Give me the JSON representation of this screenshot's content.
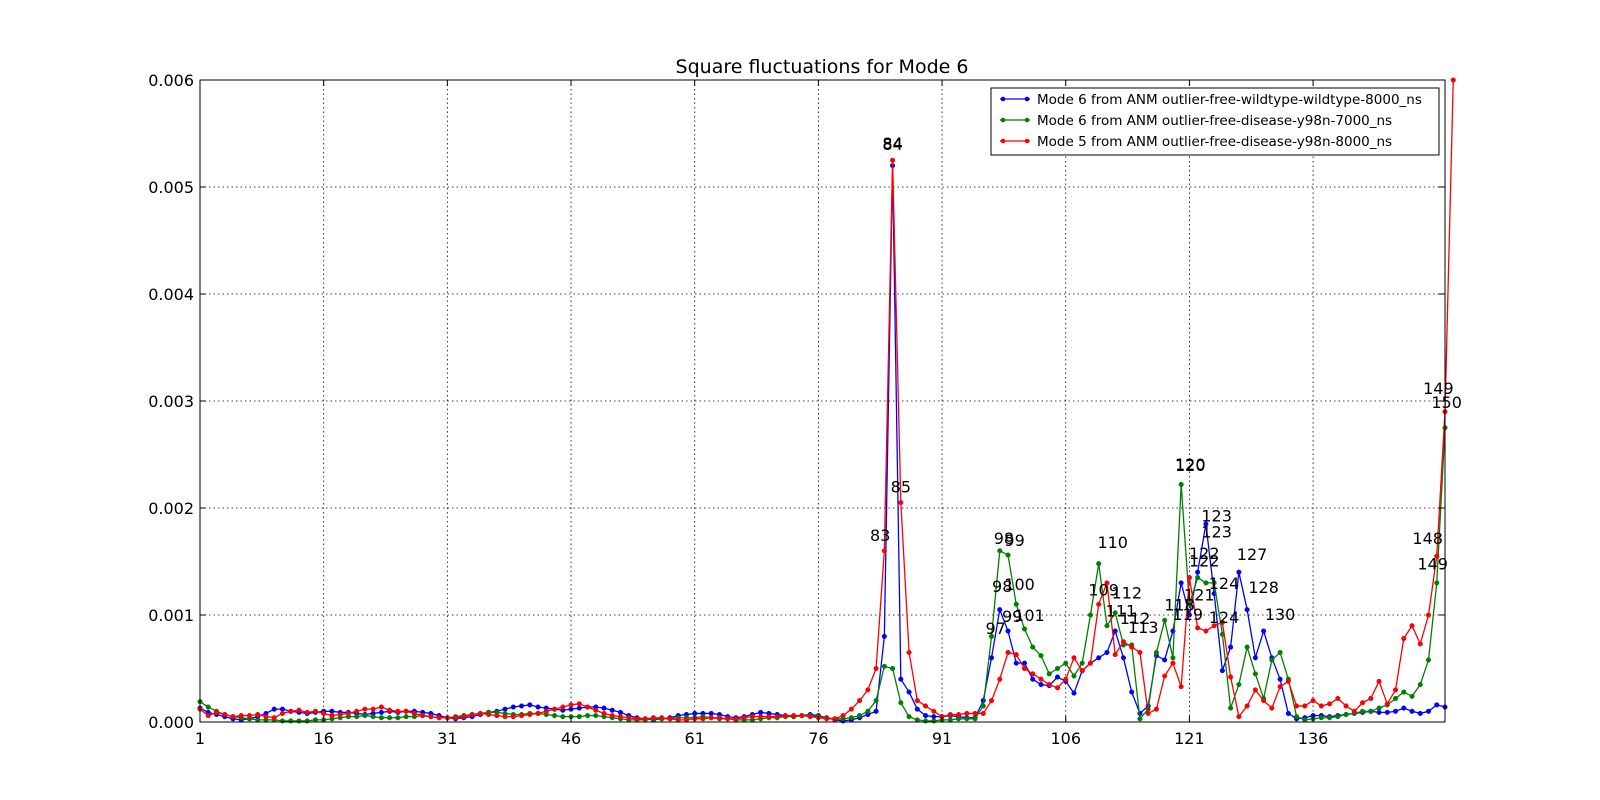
{
  "chart_data": {
    "type": "line",
    "title": "Square fluctuations for Mode 6",
    "xlabel": "",
    "ylabel": "",
    "xlim": [
      1,
      152
    ],
    "ylim": [
      0.0,
      0.006
    ],
    "x_ticks": [
      "1",
      "16",
      "31",
      "46",
      "61",
      "76",
      "91",
      "106",
      "121",
      "136"
    ],
    "y_ticks": [
      "0.000",
      "0.001",
      "0.002",
      "0.003",
      "0.004",
      "0.005",
      "0.006"
    ],
    "grid": true,
    "legend_position": "top-right",
    "series": [
      {
        "name": "Mode 6 from ANM outlier-free-wildtype-wildtype-8000_ns",
        "color": "#0000ff",
        "values": [
          0.00013,
          9e-05,
          7e-05,
          5e-05,
          3e-05,
          2e-05,
          3e-05,
          5e-05,
          8e-05,
          0.00012,
          0.00012,
          0.0001,
          9e-05,
          8e-05,
          9e-05,
          0.0001,
          0.0001,
          9e-05,
          9e-05,
          8e-05,
          7e-05,
          8e-05,
          9e-05,
          0.0001,
          9e-05,
          0.0001,
          0.0001,
          9e-05,
          8e-05,
          6e-05,
          4e-05,
          3e-05,
          4e-05,
          5e-05,
          7e-05,
          9e-05,
          0.0001,
          0.00012,
          0.00014,
          0.00015,
          0.00016,
          0.00014,
          0.00013,
          0.00012,
          0.00011,
          0.00012,
          0.00013,
          0.00014,
          0.00014,
          0.00013,
          0.00011,
          9e-05,
          6e-05,
          4e-05,
          3e-05,
          2e-05,
          3e-05,
          4e-05,
          6e-05,
          7e-05,
          8e-05,
          8e-05,
          8e-05,
          7e-05,
          5e-05,
          4e-05,
          5e-05,
          7e-05,
          9e-05,
          8e-05,
          7e-05,
          6e-05,
          5e-05,
          6e-05,
          7e-05,
          6e-05,
          4e-05,
          2e-05,
          1e-05,
          2e-05,
          4e-05,
          7e-05,
          0.0001,
          0.0008,
          0.0052,
          0.0004,
          0.00028,
          0.00012,
          6e-05,
          5e-05,
          5e-05,
          6e-05,
          5e-05,
          4e-05,
          4e-05,
          0.0002,
          0.0006,
          0.00105,
          0.00085,
          0.00055,
          0.00055,
          0.0004,
          0.00035,
          0.00034,
          0.00042,
          0.00038,
          0.00027,
          0.00048,
          0.00055,
          0.0006,
          0.00065,
          0.00085,
          0.0006,
          0.00028,
          8e-05,
          0.00015,
          0.00062,
          0.00058,
          0.00085,
          0.0013,
          0.001,
          0.0014,
          0.00185,
          0.0012,
          0.00048,
          0.0007,
          0.0014,
          0.00105,
          0.0006,
          0.00085,
          0.0006,
          0.0004,
          8e-05,
          3e-05,
          4e-05,
          6e-05,
          6e-05,
          5e-05,
          6e-05,
          7e-05,
          8e-05,
          9e-05,
          0.0001,
          9e-05,
          9e-05,
          0.0001,
          0.00013,
          0.0001,
          8e-05,
          0.0001,
          0.00016,
          0.00014
        ]
      },
      {
        "name": "Mode 6 from ANM outlier-free-disease-y98n-7000_ns",
        "color": "#008000",
        "values": [
          0.00019,
          0.00014,
          0.0001,
          7e-05,
          5e-05,
          4e-05,
          3e-05,
          2e-05,
          2e-05,
          2e-05,
          1e-05,
          1e-05,
          1e-05,
          1e-05,
          2e-05,
          2e-05,
          3e-05,
          4e-05,
          5e-05,
          5e-05,
          6e-05,
          5e-05,
          4e-05,
          4e-05,
          4e-05,
          5e-05,
          5e-05,
          6e-05,
          5e-05,
          4e-05,
          4e-05,
          5e-05,
          6e-05,
          7e-05,
          8e-05,
          9e-05,
          9e-05,
          8e-05,
          7e-05,
          7e-05,
          8e-05,
          8e-05,
          7e-05,
          6e-05,
          5e-05,
          5e-05,
          5e-05,
          6e-05,
          6e-05,
          5e-05,
          4e-05,
          3e-05,
          2e-05,
          2e-05,
          2e-05,
          3e-05,
          3e-05,
          3e-05,
          4e-05,
          4e-05,
          4e-05,
          5e-05,
          4e-05,
          3e-05,
          3e-05,
          2e-05,
          2e-05,
          2e-05,
          3e-05,
          4e-05,
          4e-05,
          5e-05,
          5e-05,
          6e-05,
          6e-05,
          5e-05,
          4e-05,
          3e-05,
          3e-05,
          4e-05,
          6e-05,
          0.0001,
          0.0002,
          0.00052,
          0.0005,
          0.00018,
          5e-05,
          2e-05,
          1e-05,
          1e-05,
          2e-05,
          2e-05,
          3e-05,
          3e-05,
          3e-05,
          0.00015,
          0.0008,
          0.0016,
          0.00156,
          0.0011,
          0.00087,
          0.0007,
          0.00062,
          0.00045,
          0.0005,
          0.00055,
          0.00043,
          0.00055,
          0.001,
          0.00148,
          0.0009,
          0.00102,
          0.00072,
          0.00072,
          3e-05,
          0.00012,
          0.00065,
          0.00095,
          0.0006,
          0.00222,
          0.0011,
          0.00135,
          0.0013,
          0.0013,
          0.00082,
          0.00013,
          0.00035,
          0.0007,
          0.00045,
          0.00022,
          0.00058,
          0.00065,
          0.0004,
          5e-05,
          2e-05,
          3e-05,
          4e-05,
          4e-05,
          5e-05,
          7e-05,
          8e-05,
          0.0001,
          0.0001,
          0.00013,
          0.00016,
          0.00022,
          0.00028,
          0.00024,
          0.00035,
          0.00058,
          0.0013,
          0.00275
        ]
      },
      {
        "name": "Mode 5 from ANM outlier-free-disease-y98n-8000_ns",
        "color": "#ff0000",
        "values": [
          0.00012,
          6e-05,
          9e-05,
          7e-05,
          5e-05,
          6e-05,
          6e-05,
          7e-05,
          5e-05,
          4e-05,
          8e-05,
          0.0001,
          0.00011,
          9e-05,
          0.0001,
          8e-05,
          6e-05,
          7e-05,
          8e-05,
          0.0001,
          0.00012,
          0.00012,
          0.00014,
          0.00011,
          0.0001,
          0.0001,
          8e-05,
          6e-05,
          5e-05,
          4e-05,
          4e-05,
          4e-05,
          5e-05,
          7e-05,
          8e-05,
          7e-05,
          6e-05,
          5e-05,
          5e-05,
          6e-05,
          7e-05,
          8e-05,
          0.0001,
          0.00012,
          0.00014,
          0.00016,
          0.00017,
          0.00014,
          0.00011,
          8e-05,
          6e-05,
          5e-05,
          4e-05,
          3e-05,
          3e-05,
          4e-05,
          4e-05,
          3e-05,
          2e-05,
          2e-05,
          3e-05,
          3e-05,
          4e-05,
          4e-05,
          3e-05,
          3e-05,
          4e-05,
          5e-05,
          5e-05,
          5e-05,
          5e-05,
          6e-05,
          6e-05,
          6e-05,
          5e-05,
          4e-05,
          3e-05,
          3e-05,
          6e-05,
          0.00012,
          0.0002,
          0.0003,
          0.0005,
          0.0016,
          0.00525,
          0.00205,
          0.00065,
          0.0002,
          0.00015,
          0.0001,
          5e-05,
          7e-05,
          7e-05,
          8e-05,
          8e-05,
          8e-05,
          0.0002,
          0.0004,
          0.00065,
          0.00063,
          0.0005,
          0.00045,
          0.0004,
          0.00035,
          0.00032,
          0.0004,
          0.0006,
          0.00048,
          0.00055,
          0.0011,
          0.0013,
          0.00063,
          0.00075,
          0.0007,
          0.00065,
          8e-05,
          0.00012,
          0.00043,
          0.00055,
          0.00033,
          0.00135,
          0.00088,
          0.00085,
          0.0009,
          0.00093,
          0.00042,
          5e-05,
          0.00015,
          0.0003,
          0.0002,
          0.00013,
          0.00033,
          0.00038,
          0.00015,
          0.00015,
          0.0002,
          0.00015,
          0.00017,
          0.00022,
          0.00015,
          0.0001,
          0.00018,
          0.00022,
          0.00038,
          0.00017,
          0.0003,
          0.00078,
          0.0009,
          0.00073,
          0.001,
          0.00155,
          0.0029,
          0.006
        ]
      }
    ],
    "annotations": [
      {
        "text": "84",
        "x": 85,
        "y": 0.0054
      },
      {
        "text": "84",
        "x": 85,
        "y": 0.00541
      },
      {
        "text": "85",
        "x": 86,
        "y": 0.0022
      },
      {
        "text": "83",
        "x": 83.5,
        "y": 0.00175
      },
      {
        "text": "98",
        "x": 98.5,
        "y": 0.00172
      },
      {
        "text": "99",
        "x": 99.8,
        "y": 0.0017
      },
      {
        "text": "98",
        "x": 98.3,
        "y": 0.00127
      },
      {
        "text": "100",
        "x": 100.4,
        "y": 0.00129
      },
      {
        "text": "97",
        "x": 97.5,
        "y": 0.00088
      },
      {
        "text": "99",
        "x": 99.5,
        "y": 0.00099
      },
      {
        "text": "101",
        "x": 101.6,
        "y": 0.001
      },
      {
        "text": "110",
        "x": 111.7,
        "y": 0.00168
      },
      {
        "text": "109",
        "x": 110.6,
        "y": 0.00124
      },
      {
        "text": "112",
        "x": 113.4,
        "y": 0.00121
      },
      {
        "text": "111",
        "x": 112.7,
        "y": 0.00104
      },
      {
        "text": "112",
        "x": 114.4,
        "y": 0.00097
      },
      {
        "text": "113",
        "x": 115.4,
        "y": 0.00089
      },
      {
        "text": "120",
        "x": 121.1,
        "y": 0.0024
      },
      {
        "text": "120",
        "x": 121.1,
        "y": 0.00241
      },
      {
        "text": "123",
        "x": 124.3,
        "y": 0.00193
      },
      {
        "text": "123",
        "x": 124.3,
        "y": 0.00178
      },
      {
        "text": "122",
        "x": 122.8,
        "y": 0.00158
      },
      {
        "text": "122",
        "x": 122.8,
        "y": 0.00151
      },
      {
        "text": "124",
        "x": 125.2,
        "y": 0.0013
      },
      {
        "text": "121",
        "x": 122.2,
        "y": 0.00119
      },
      {
        "text": "118",
        "x": 119.8,
        "y": 0.0011
      },
      {
        "text": "119",
        "x": 120.8,
        "y": 0.00101
      },
      {
        "text": "124",
        "x": 125.2,
        "y": 0.00098
      },
      {
        "text": "127",
        "x": 128.6,
        "y": 0.00157
      },
      {
        "text": "128",
        "x": 130.0,
        "y": 0.00126
      },
      {
        "text": "130",
        "x": 132.0,
        "y": 0.00101
      },
      {
        "text": "148",
        "x": 149.9,
        "y": 0.00172
      },
      {
        "text": "149",
        "x": 150.5,
        "y": 0.00148
      },
      {
        "text": "149",
        "x": 151.2,
        "y": 0.00312
      },
      {
        "text": "150",
        "x": 152.2,
        "y": 0.00299
      }
    ]
  }
}
